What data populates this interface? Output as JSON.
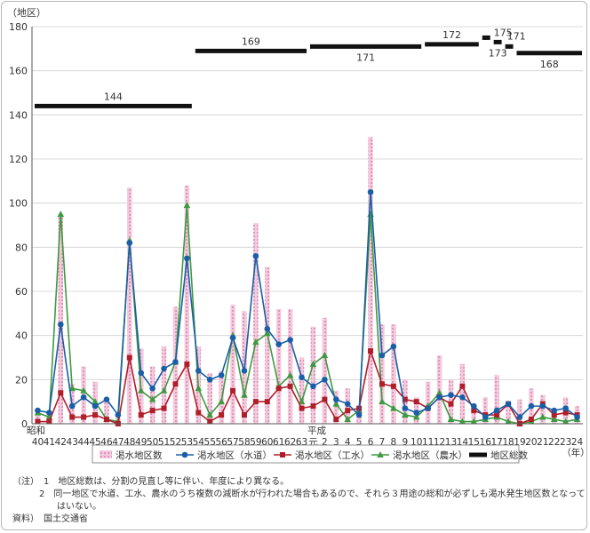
{
  "chart_data": {
    "type": "line",
    "y_unit_label": "（地区）",
    "x_unit_label": "（年）",
    "ylim": [
      0,
      180
    ],
    "yticks": [
      "0",
      "20",
      "40",
      "60",
      "80",
      "100",
      "120",
      "140",
      "160",
      "180"
    ],
    "era_labels": {
      "showa": "昭和",
      "heisei": "平成"
    },
    "categories": [
      "40",
      "41",
      "42",
      "43",
      "44",
      "45",
      "46",
      "47",
      "48",
      "49",
      "50",
      "51",
      "52",
      "53",
      "54",
      "55",
      "56",
      "57",
      "58",
      "59",
      "60",
      "61",
      "62",
      "63",
      "元",
      "2",
      "3",
      "4",
      "5",
      "6",
      "7",
      "8",
      "9",
      "10",
      "11",
      "12",
      "13",
      "14",
      "15",
      "16",
      "17",
      "18",
      "19",
      "20",
      "21",
      "22",
      "23",
      "24"
    ],
    "series": [
      {
        "name": "渇水地区数",
        "kind": "bar",
        "color": "#e8a8c4",
        "values": [
          6,
          5,
          95,
          18,
          26,
          19,
          11,
          3,
          107,
          34,
          26,
          35,
          53,
          108,
          35,
          23,
          24,
          54,
          51,
          91,
          71,
          52,
          52,
          30,
          44,
          48,
          15,
          16,
          6,
          130,
          45,
          45,
          20,
          12,
          19,
          31,
          20,
          27,
          7,
          12,
          22,
          8,
          11,
          16,
          13,
          5,
          12,
          8
        ]
      },
      {
        "name": "渇水地区（水道）",
        "kind": "line",
        "color": "#1a5ea8",
        "marker": "circle",
        "values": [
          6,
          5,
          45,
          8,
          12,
          8,
          11,
          4,
          82,
          23,
          16,
          25,
          28,
          75,
          24,
          20,
          22,
          39,
          24,
          76,
          43,
          36,
          38,
          21,
          17,
          20,
          11,
          9,
          4,
          105,
          31,
          35,
          7,
          5,
          7,
          12,
          13,
          12,
          8,
          3,
          6,
          9,
          3,
          8,
          8,
          6,
          7,
          3
        ]
      },
      {
        "name": "渇水地区（工水）",
        "kind": "line",
        "color": "#b01e2a",
        "marker": "square",
        "values": [
          1,
          1,
          14,
          3,
          3,
          4,
          2,
          0,
          30,
          4,
          6,
          7,
          18,
          27,
          5,
          1,
          4,
          15,
          4,
          10,
          10,
          16,
          17,
          7,
          8,
          11,
          2,
          6,
          7,
          33,
          18,
          17,
          11,
          10,
          7,
          12,
          9,
          17,
          6,
          4,
          4,
          9,
          0,
          2,
          9,
          4,
          5,
          4
        ]
      },
      {
        "name": "渇水地区（農水）",
        "kind": "line",
        "color": "#3e9a41",
        "marker": "triangle",
        "values": [
          5,
          3,
          95,
          16,
          15,
          10,
          2,
          1,
          83,
          15,
          11,
          15,
          28,
          99,
          16,
          4,
          10,
          40,
          13,
          37,
          41,
          17,
          22,
          10,
          27,
          31,
          9,
          2,
          6,
          95,
          10,
          7,
          4,
          3,
          8,
          14,
          2,
          1,
          1,
          2,
          3,
          1,
          0,
          1,
          3,
          2,
          1,
          2
        ]
      }
    ],
    "total_steps": {
      "name": "地区総数",
      "color": "#111111",
      "segments": [
        {
          "from": "40",
          "to": "53",
          "value": 144,
          "label": "144"
        },
        {
          "from": "54",
          "to": "63",
          "value": 169,
          "label": "169"
        },
        {
          "from": "元",
          "to": "10",
          "value": 171,
          "label": "171"
        },
        {
          "from": "11",
          "to": "15",
          "value": 172,
          "label": "172"
        },
        {
          "from": "16",
          "to": "16",
          "value": 175,
          "label": "175"
        },
        {
          "from": "17",
          "to": "17",
          "value": 173,
          "label": "173"
        },
        {
          "from": "18",
          "to": "18",
          "value": 171,
          "label": "171"
        },
        {
          "from": "19",
          "to": "24",
          "value": 168,
          "label": "168"
        }
      ]
    },
    "grid": true,
    "legend_position": "bottom"
  },
  "notes": {
    "prefix": "（注）",
    "items": [
      {
        "num": "1",
        "text": "地区総数は、分割の見直し等に伴い、年度により異なる。"
      },
      {
        "num": "2",
        "text": "同一地区で水道、工水、農水のうち複数の減断水が行われた場合もあるので、それら３用途の総和が必ずしも渇水発生地区数となって"
      },
      {
        "num": "",
        "text": "はいない。"
      }
    ],
    "source_prefix": "資料）",
    "source_text": "国土交通省"
  }
}
